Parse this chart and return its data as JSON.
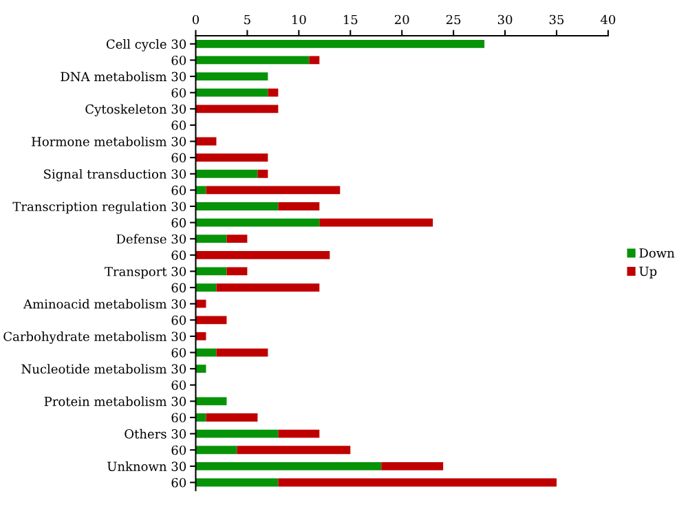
{
  "chart_data": {
    "type": "bar",
    "orientation": "horizontal",
    "stacked": true,
    "categories": [
      "Cell cycle 30",
      "60",
      "DNA metabolism 30",
      "60",
      "Cytoskeleton 30",
      "60",
      "Hormone metabolism 30",
      "60",
      "Signal transduction 30",
      "60",
      "Transcription regulation 30",
      "60",
      "Defense 30",
      "60",
      "Transport 30",
      "60",
      "Aminoacid metabolism 30",
      "60",
      "Carbohydrate metabolism 30",
      "60",
      "Nucleotide metabolism 30",
      "60",
      "Protein metabolism 30",
      "60",
      "Others 30",
      "60",
      "Unknown 30",
      "60"
    ],
    "series": [
      {
        "name": "Down",
        "color": "#079307",
        "values": [
          28,
          11,
          7,
          7,
          0,
          0,
          0,
          0,
          6,
          1,
          8,
          12,
          3,
          0,
          3,
          2,
          0,
          0,
          0,
          2,
          1,
          0,
          3,
          1,
          8,
          4,
          18,
          8
        ]
      },
      {
        "name": "Up",
        "color": "#bf0000",
        "values": [
          0,
          1,
          0,
          1,
          8,
          0,
          2,
          7,
          1,
          13,
          4,
          11,
          2,
          13,
          2,
          10,
          1,
          3,
          1,
          5,
          0,
          0,
          0,
          5,
          4,
          11,
          6,
          27
        ]
      }
    ],
    "xlim": [
      0,
      40
    ],
    "xticks": [
      0,
      5,
      10,
      15,
      20,
      25,
      30,
      35,
      40
    ],
    "grid": false,
    "legend": "right"
  }
}
